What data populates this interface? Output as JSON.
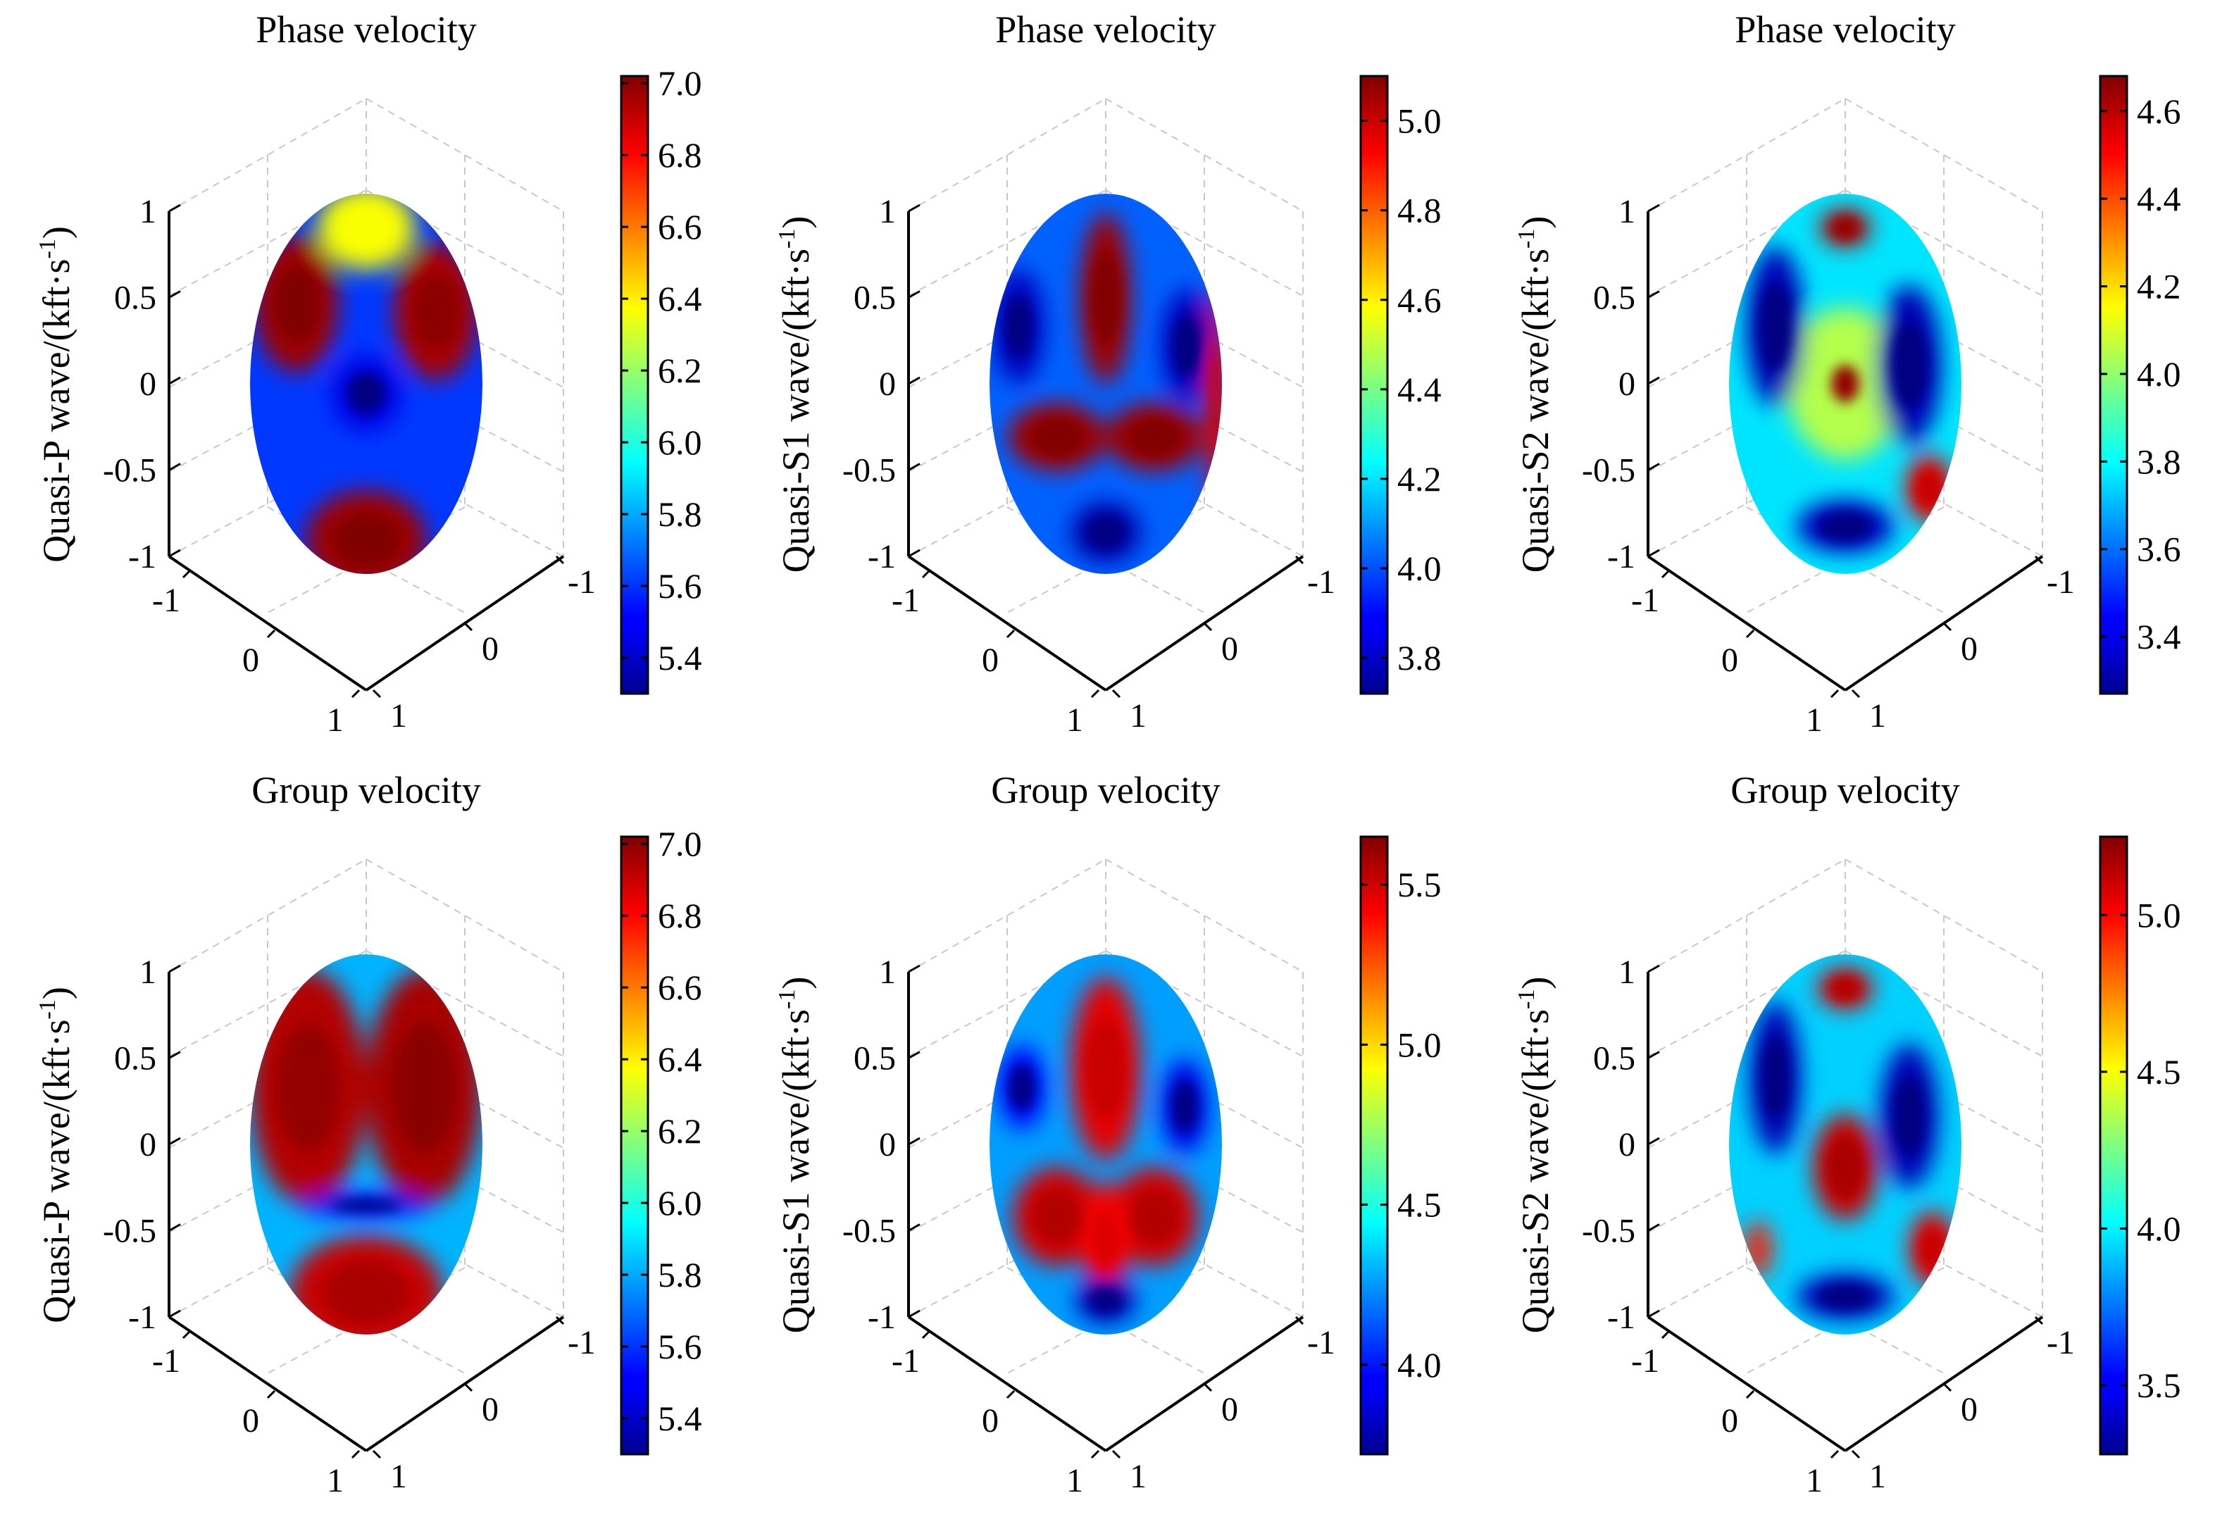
{
  "chart_data": [
    {
      "type": "3d-surface",
      "title": "Phase velocity",
      "ylabel": "Quasi-P wave/(kft·s",
      "ylabel_sup": "-1",
      "ylabel_close": ")",
      "axis_ticks": {
        "z": [
          "1",
          "0.5",
          "0",
          "-0.5",
          "-1"
        ],
        "x": [
          "-1",
          "0",
          "1"
        ],
        "y": [
          "-1",
          "0",
          "1"
        ]
      },
      "colorbar": {
        "colormap": "jet",
        "min": 5.3,
        "max": 7.02,
        "ticks": [
          "7.0",
          "6.8",
          "6.6",
          "6.4",
          "6.2",
          "6.0",
          "5.8",
          "5.6",
          "5.4"
        ],
        "tick_values": [
          7.0,
          6.8,
          6.6,
          6.4,
          6.2,
          6.0,
          5.8,
          5.6,
          5.4
        ]
      },
      "pattern": "p-phase"
    },
    {
      "type": "3d-surface",
      "title": "Phase velocity",
      "ylabel": "Quasi-S1 wave/(kft·s",
      "ylabel_sup": "-1",
      "ylabel_close": ")",
      "axis_ticks": {
        "z": [
          "1",
          "0.5",
          "0",
          "-0.5",
          "-1"
        ],
        "x": [
          "-1",
          "0",
          "1"
        ],
        "y": [
          "-1",
          "0",
          "1"
        ]
      },
      "colorbar": {
        "colormap": "jet",
        "min": 3.72,
        "max": 5.1,
        "ticks": [
          "5.0",
          "4.8",
          "4.6",
          "4.4",
          "4.2",
          "4.0",
          "3.8"
        ],
        "tick_values": [
          5.0,
          4.8,
          4.6,
          4.4,
          4.2,
          4.0,
          3.8
        ]
      },
      "pattern": "s1-phase"
    },
    {
      "type": "3d-surface",
      "title": "Phase velocity",
      "ylabel": "Quasi-S2 wave/(kft·s",
      "ylabel_sup": "-1",
      "ylabel_close": ")",
      "axis_ticks": {
        "z": [
          "1",
          "0.5",
          "0",
          "-0.5",
          "-1"
        ],
        "x": [
          "-1",
          "0",
          "1"
        ],
        "y": [
          "-1",
          "0",
          "1"
        ]
      },
      "colorbar": {
        "colormap": "jet",
        "min": 3.27,
        "max": 4.68,
        "ticks": [
          "4.6",
          "4.4",
          "4.2",
          "4.0",
          "3.8",
          "3.6",
          "3.4"
        ],
        "tick_values": [
          4.6,
          4.4,
          4.2,
          4.0,
          3.8,
          3.6,
          3.4
        ]
      },
      "pattern": "s2-phase"
    },
    {
      "type": "3d-surface",
      "title": "Group velocity",
      "ylabel": "Quasi-P wave/(kft·s",
      "ylabel_sup": "-1",
      "ylabel_close": ")",
      "axis_ticks": {
        "z": [
          "1",
          "0.5",
          "0",
          "-0.5",
          "-1"
        ],
        "x": [
          "-1",
          "0",
          "1"
        ],
        "y": [
          "-1",
          "0",
          "1"
        ]
      },
      "colorbar": {
        "colormap": "jet",
        "min": 5.3,
        "max": 7.02,
        "ticks": [
          "7.0",
          "6.8",
          "6.6",
          "6.4",
          "6.2",
          "6.0",
          "5.8",
          "5.6",
          "5.4"
        ],
        "tick_values": [
          7.0,
          6.8,
          6.6,
          6.4,
          6.2,
          6.0,
          5.8,
          5.6,
          5.4
        ]
      },
      "pattern": "p-group"
    },
    {
      "type": "3d-surface",
      "title": "Group velocity",
      "ylabel": "Quasi-S1 wave/(kft·s",
      "ylabel_sup": "-1",
      "ylabel_close": ")",
      "axis_ticks": {
        "z": [
          "1",
          "0.5",
          "0",
          "-0.5",
          "-1"
        ],
        "x": [
          "-1",
          "0",
          "1"
        ],
        "y": [
          "-1",
          "0",
          "1"
        ]
      },
      "colorbar": {
        "colormap": "jet",
        "min": 3.72,
        "max": 5.65,
        "ticks": [
          "5.5",
          "5.0",
          "4.5",
          "4.0"
        ],
        "tick_values": [
          5.5,
          5.0,
          4.5,
          4.0
        ]
      },
      "pattern": "s1-group"
    },
    {
      "type": "3d-surface",
      "title": "Group velocity",
      "ylabel": "Quasi-S2 wave/(kft·s",
      "ylabel_sup": "-1",
      "ylabel_close": ")",
      "axis_ticks": {
        "z": [
          "1",
          "0.5",
          "0",
          "-0.5",
          "-1"
        ],
        "x": [
          "-1",
          "0",
          "1"
        ],
        "y": [
          "-1",
          "0",
          "1"
        ]
      },
      "colorbar": {
        "colormap": "jet",
        "min": 3.28,
        "max": 5.25,
        "ticks": [
          "5.0",
          "4.5",
          "4.0",
          "3.5"
        ],
        "tick_values": [
          5.0,
          4.5,
          4.0,
          3.5
        ]
      },
      "pattern": "s2-group"
    }
  ]
}
